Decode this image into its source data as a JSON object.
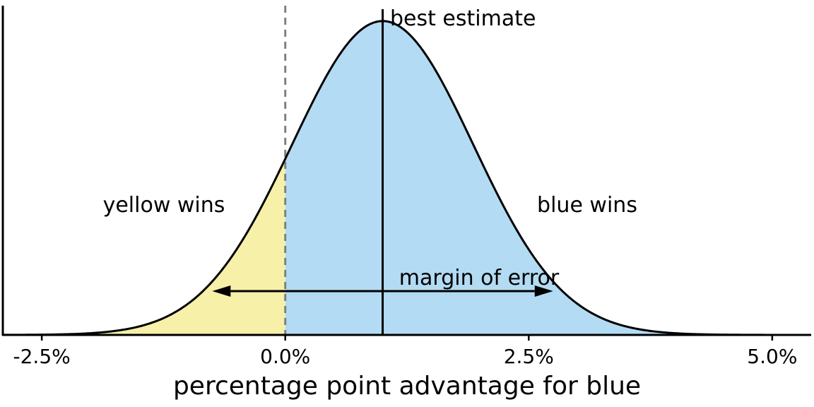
{
  "chart_data": {
    "type": "area",
    "title": "",
    "xlabel": "percentage point advantage for blue",
    "ylabel": "",
    "distribution": {
      "kind": "normal",
      "mean": 1.0,
      "sd": 0.93
    },
    "xlim": [
      -2.9,
      5.4
    ],
    "ylim": [
      0,
      0.45
    ],
    "x_ticks": [
      -2.5,
      0.0,
      2.5,
      5.0
    ],
    "x_tick_labels": [
      "-2.5%",
      "0.0%",
      "2.5%",
      "5.0%"
    ],
    "threshold": 0.0,
    "best_estimate": 1.0,
    "margin_of_error": {
      "from": -0.75,
      "to": 2.75,
      "label": "margin of error"
    },
    "regions": [
      {
        "label": "yellow wins",
        "from": -2.9,
        "to": 0.0,
        "color": "#f7f0a8"
      },
      {
        "label": "blue wins",
        "from": 0.0,
        "to": 5.4,
        "color": "#b3dbf3"
      }
    ],
    "annotations": {
      "best_estimate": "best estimate",
      "yellow_wins": "yellow wins",
      "blue_wins": "blue wins"
    },
    "colors": {
      "curve": "#000000",
      "threshold_line": "#808080"
    },
    "grid": false,
    "legend": "none"
  }
}
